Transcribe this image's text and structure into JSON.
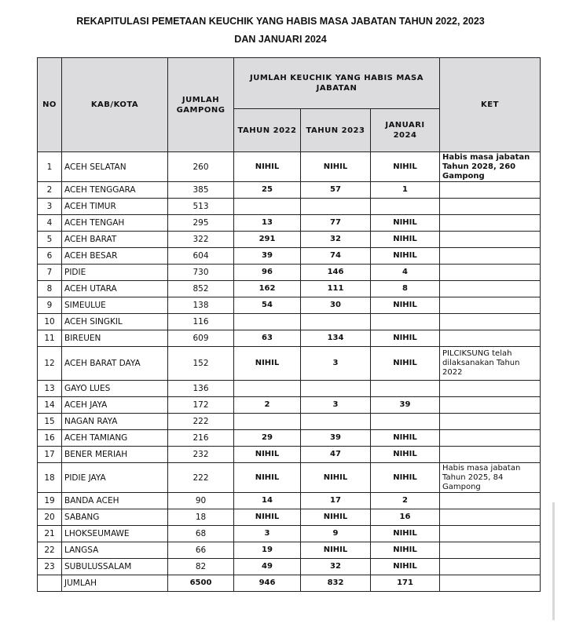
{
  "title_line1": "REKAPITULASI PEMETAAN KEUCHIK YANG HABIS MASA JABATAN TAHUN 2022, 2023",
  "title_line2": "DAN JANUARI 2024",
  "headers": {
    "no": "NO",
    "kab": "KAB/KOTA",
    "gampong": "JUMLAH GAMPONG",
    "group": "JUMLAH KEUCHIK YANG HABIS MASA JABATAN",
    "y2022": "TAHUN 2022",
    "y2023": "TAHUN 2023",
    "jan2024": "JANUARI 2024",
    "ket": "KET"
  },
  "rows": [
    {
      "no": "1",
      "kab": "ACEH SELATAN",
      "gampong": "260",
      "y2022": "NIHIL",
      "y2023": "NIHIL",
      "jan2024": "NIHIL",
      "ket": "Habis masa jabatan Tahun 2028, 260 Gampong"
    },
    {
      "no": "2",
      "kab": "ACEH TENGGARA",
      "gampong": "385",
      "y2022": "25",
      "y2023": "57",
      "jan2024": "1",
      "ket": ""
    },
    {
      "no": "3",
      "kab": "ACEH TIMUR",
      "gampong": "513",
      "y2022": "",
      "y2023": "",
      "jan2024": "",
      "ket": ""
    },
    {
      "no": "4",
      "kab": "ACEH TENGAH",
      "gampong": "295",
      "y2022": "13",
      "y2023": "77",
      "jan2024": "NIHIL",
      "ket": ""
    },
    {
      "no": "5",
      "kab": "ACEH BARAT",
      "gampong": "322",
      "y2022": "291",
      "y2023": "32",
      "jan2024": "NIHIL",
      "ket": ""
    },
    {
      "no": "6",
      "kab": "ACEH BESAR",
      "gampong": "604",
      "y2022": "39",
      "y2023": "74",
      "jan2024": "NIHIL",
      "ket": ""
    },
    {
      "no": "7",
      "kab": "PIDIE",
      "gampong": "730",
      "y2022": "96",
      "y2023": "146",
      "jan2024": "4",
      "ket": ""
    },
    {
      "no": "8",
      "kab": "ACEH UTARA",
      "gampong": "852",
      "y2022": "162",
      "y2023": "111",
      "jan2024": "8",
      "ket": ""
    },
    {
      "no": "9",
      "kab": "SIMEULUE",
      "gampong": "138",
      "y2022": "54",
      "y2023": "30",
      "jan2024": "NIHIL",
      "ket": ""
    },
    {
      "no": "10",
      "kab": "ACEH SINGKIL",
      "gampong": "116",
      "y2022": "",
      "y2023": "",
      "jan2024": "",
      "ket": ""
    },
    {
      "no": "11",
      "kab": "BIREUEN",
      "gampong": "609",
      "y2022": "63",
      "y2023": "134",
      "jan2024": "NIHIL",
      "ket": ""
    },
    {
      "no": "12",
      "kab": "ACEH BARAT DAYA",
      "gampong": "152",
      "y2022": "NIHIL",
      "y2023": "3",
      "jan2024": "NIHIL",
      "ket": "PILCIKSUNG telah dilaksanakan Tahun 2022"
    },
    {
      "no": "13",
      "kab": "GAYO LUES",
      "gampong": "136",
      "y2022": "",
      "y2023": "",
      "jan2024": "",
      "ket": ""
    },
    {
      "no": "14",
      "kab": "ACEH JAYA",
      "gampong": "172",
      "y2022": "2",
      "y2023": "3",
      "jan2024": "39",
      "ket": ""
    },
    {
      "no": "15",
      "kab": "NAGAN RAYA",
      "gampong": "222",
      "y2022": "",
      "y2023": "",
      "jan2024": "",
      "ket": ""
    },
    {
      "no": "16",
      "kab": "ACEH TAMIANG",
      "gampong": "216",
      "y2022": "29",
      "y2023": "39",
      "jan2024": "NIHIL",
      "ket": ""
    },
    {
      "no": "17",
      "kab": "BENER MERIAH",
      "gampong": "232",
      "y2022": "NIHIL",
      "y2023": "47",
      "jan2024": "NIHIL",
      "ket": ""
    },
    {
      "no": "18",
      "kab": "PIDIE JAYA",
      "gampong": "222",
      "y2022": "NIHIL",
      "y2023": "NIHIL",
      "jan2024": "NIHIL",
      "ket": "Habis masa jabatan Tahun 2025, 84 Gampong"
    },
    {
      "no": "19",
      "kab": "BANDA ACEH",
      "gampong": "90",
      "y2022": "14",
      "y2023": "17",
      "jan2024": "2",
      "ket": ""
    },
    {
      "no": "20",
      "kab": "SABANG",
      "gampong": "18",
      "y2022": "NIHIL",
      "y2023": "NIHIL",
      "jan2024": "16",
      "ket": ""
    },
    {
      "no": "21",
      "kab": "LHOKSEUMAWE",
      "gampong": "68",
      "y2022": "3",
      "y2023": "9",
      "jan2024": "NIHIL",
      "ket": ""
    },
    {
      "no": "22",
      "kab": "LANGSA",
      "gampong": "66",
      "y2022": "19",
      "y2023": "NIHIL",
      "jan2024": "NIHIL",
      "ket": ""
    },
    {
      "no": "23",
      "kab": "SUBULUSSALAM",
      "gampong": "82",
      "y2022": "49",
      "y2023": "32",
      "jan2024": "NIHIL",
      "ket": ""
    }
  ],
  "total": {
    "label": "JUMLAH",
    "gampong": "6500",
    "y2022": "946",
    "y2023": "832",
    "jan2024": "171"
  }
}
